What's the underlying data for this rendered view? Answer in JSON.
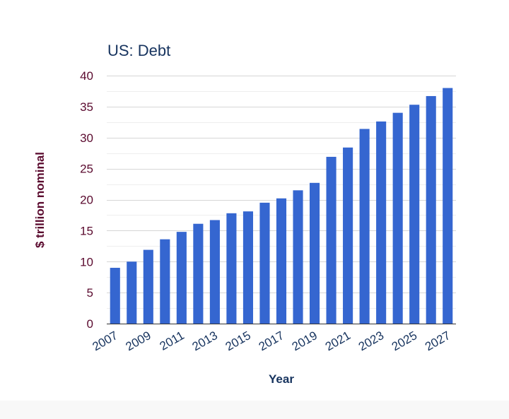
{
  "chart_data": {
    "type": "bar",
    "title": "US: Debt",
    "xlabel": "Year",
    "ylabel": "$ trillion nominal",
    "ylim": [
      0,
      40
    ],
    "yticks": [
      0,
      5,
      10,
      15,
      20,
      25,
      30,
      35,
      40
    ],
    "grid": true,
    "categories": [
      "2007",
      "2008",
      "2009",
      "2010",
      "2011",
      "2012",
      "2013",
      "2014",
      "2015",
      "2016",
      "2017",
      "2018",
      "2019",
      "2020",
      "2021",
      "2022",
      "2023",
      "2024",
      "2025",
      "2026",
      "2027"
    ],
    "xtick_labels": [
      "2007",
      "2009",
      "2011",
      "2013",
      "2015",
      "2017",
      "2019",
      "2021",
      "2023",
      "2025",
      "2027"
    ],
    "series": [
      {
        "name": "US Debt",
        "color": "#3566d0",
        "values": [
          9.0,
          10.0,
          11.9,
          13.6,
          14.8,
          16.1,
          16.7,
          17.8,
          18.1,
          19.5,
          20.2,
          21.5,
          22.7,
          26.9,
          28.4,
          31.4,
          32.6,
          34.0,
          35.3,
          36.7,
          38.0
        ]
      }
    ]
  }
}
